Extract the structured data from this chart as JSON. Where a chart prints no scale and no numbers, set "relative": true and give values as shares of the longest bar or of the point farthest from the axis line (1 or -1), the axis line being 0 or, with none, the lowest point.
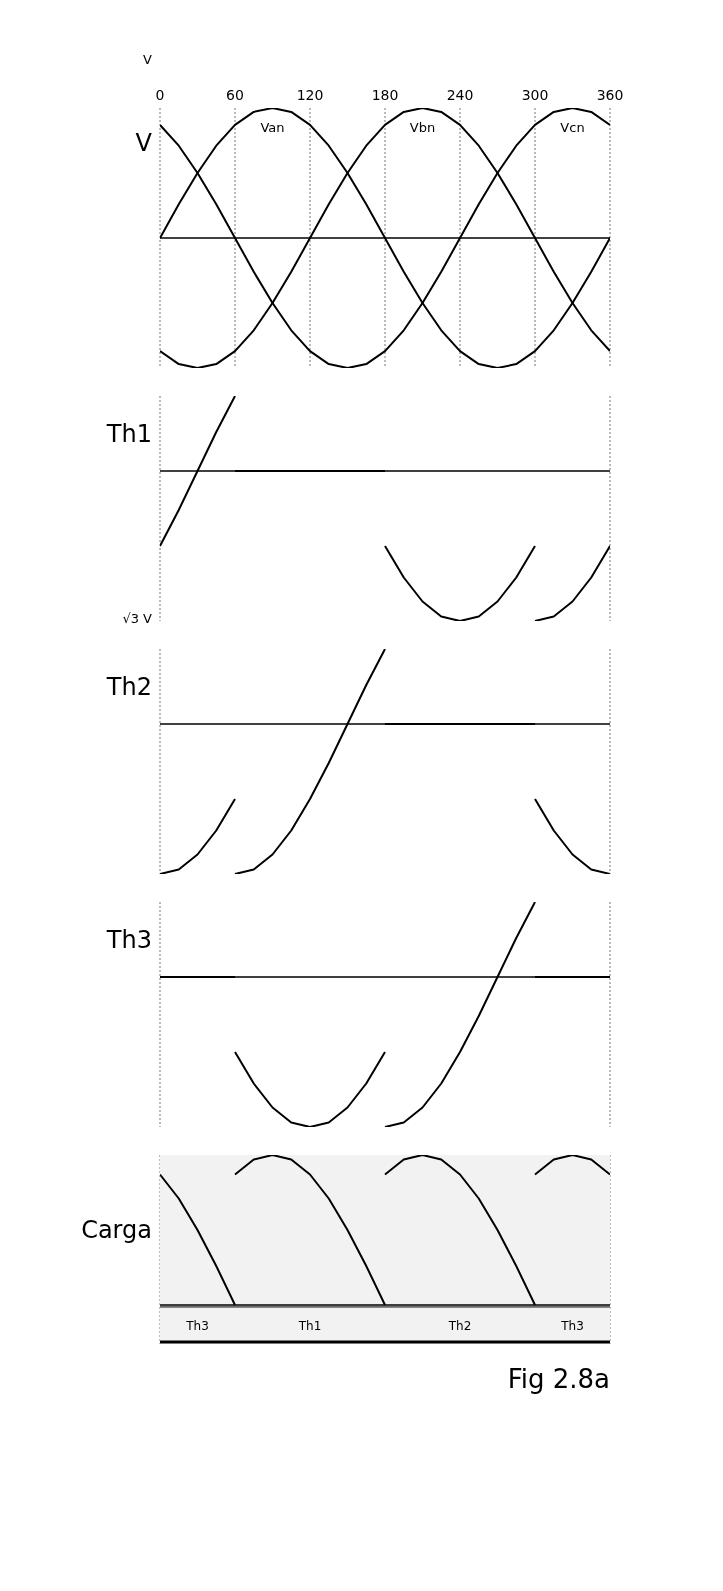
{
  "chart_data": [
    {
      "type": "line",
      "relative": true,
      "ylabel": "V",
      "xlim": [
        0,
        360
      ],
      "xticks": [
        0,
        60,
        120,
        180,
        240,
        300,
        360
      ],
      "grid": "x",
      "annotations": [
        "V"
      ],
      "series": [
        {
          "name": "Van",
          "color": "#000000",
          "x": [
            0,
            15,
            30,
            45,
            60,
            75,
            90,
            105,
            120,
            135,
            150,
            165,
            180,
            195,
            210,
            225,
            240,
            255,
            270,
            285,
            300,
            315,
            330,
            345,
            360
          ],
          "values": [
            0,
            0.26,
            0.5,
            0.71,
            0.87,
            0.97,
            1,
            0.97,
            0.87,
            0.71,
            0.5,
            0.26,
            0,
            -0.26,
            -0.5,
            -0.71,
            -0.87,
            -0.97,
            -1,
            -0.97,
            -0.87,
            -0.71,
            -0.5,
            -0.26,
            0
          ]
        },
        {
          "name": "Vbn",
          "color": "#000000",
          "x": [
            0,
            15,
            30,
            45,
            60,
            75,
            90,
            105,
            120,
            135,
            150,
            165,
            180,
            195,
            210,
            225,
            240,
            255,
            270,
            285,
            300,
            315,
            330,
            345,
            360
          ],
          "values": [
            -0.87,
            -0.97,
            -1,
            -0.97,
            -0.87,
            -0.71,
            -0.5,
            -0.26,
            0,
            0.26,
            0.5,
            0.71,
            0.87,
            0.97,
            1,
            0.97,
            0.87,
            0.71,
            0.5,
            0.26,
            0,
            -0.26,
            -0.5,
            -0.71,
            -0.87
          ]
        },
        {
          "name": "Vcn",
          "color": "#000000",
          "x": [
            0,
            15,
            30,
            45,
            60,
            75,
            90,
            105,
            120,
            135,
            150,
            165,
            180,
            195,
            210,
            225,
            240,
            255,
            270,
            285,
            300,
            315,
            330,
            345,
            360
          ],
          "values": [
            0.87,
            0.71,
            0.5,
            0.26,
            0,
            -0.26,
            -0.5,
            -0.71,
            -0.87,
            -0.97,
            -1,
            -0.97,
            -0.87,
            -0.71,
            -0.5,
            -0.26,
            0,
            0.26,
            0.5,
            0.71,
            0.87,
            0.97,
            1,
            0.97,
            0.87
          ]
        }
      ]
    },
    {
      "type": "line",
      "relative": true,
      "ylabel": "Th1",
      "xlim": [
        0,
        360
      ],
      "grid": "x",
      "tick_labels": false,
      "annotations": [
        "√3 V"
      ],
      "series": [
        {
          "color": "#000000",
          "x": [
            0,
            15,
            30,
            45,
            60
          ],
          "values": [
            -0.5,
            -0.26,
            0,
            0.26,
            0.5
          ]
        },
        {
          "color": "#000000",
          "x": [
            60,
            180
          ],
          "values": [
            0,
            0
          ]
        },
        {
          "color": "#000000",
          "x": [
            180,
            195,
            210,
            225,
            240,
            255,
            270,
            285,
            300
          ],
          "values": [
            -0.5,
            -0.71,
            -0.87,
            -0.97,
            -1,
            -0.97,
            -0.87,
            -0.71,
            -0.5
          ]
        },
        {
          "color": "#000000",
          "x": [
            300,
            315,
            330,
            345,
            360
          ],
          "values": [
            -1,
            -0.97,
            -0.87,
            -0.71,
            -0.5
          ]
        }
      ]
    },
    {
      "type": "line",
      "relative": true,
      "ylabel": "Th2",
      "xlim": [
        0,
        360
      ],
      "grid": "x",
      "tick_labels": false,
      "series": [
        {
          "color": "#000000",
          "x": [
            0,
            15,
            30,
            45,
            60
          ],
          "values": [
            -1,
            -0.97,
            -0.87,
            -0.71,
            -0.5
          ]
        },
        {
          "color": "#000000",
          "x": [
            60,
            75,
            90,
            105,
            120,
            135,
            150,
            165,
            180
          ],
          "values": [
            -1,
            -0.97,
            -0.87,
            -0.71,
            -0.5,
            -0.26,
            0,
            0.26,
            0.5
          ]
        },
        {
          "color": "#000000",
          "x": [
            180,
            300
          ],
          "values": [
            0,
            0
          ]
        },
        {
          "color": "#000000",
          "x": [
            300,
            315,
            330,
            345,
            360
          ],
          "values": [
            -0.5,
            -0.71,
            -0.87,
            -0.97,
            -1
          ]
        }
      ]
    },
    {
      "type": "line",
      "relative": true,
      "ylabel": "Th3",
      "xlim": [
        0,
        360
      ],
      "grid": "x",
      "tick_labels": false,
      "series": [
        {
          "color": "#000000",
          "x": [
            0,
            60
          ],
          "values": [
            0,
            0
          ]
        },
        {
          "color": "#000000",
          "x": [
            60,
            75,
            90,
            105,
            120,
            135,
            150,
            165,
            180
          ],
          "values": [
            -0.5,
            -0.71,
            -0.87,
            -0.97,
            -1,
            -0.97,
            -0.87,
            -0.71,
            -0.5
          ]
        },
        {
          "color": "#000000",
          "x": [
            180,
            195,
            210,
            225,
            240,
            255,
            270,
            285,
            300
          ],
          "values": [
            -1,
            -0.97,
            -0.87,
            -0.71,
            -0.5,
            -0.26,
            0,
            0.26,
            0.5
          ]
        },
        {
          "color": "#000000",
          "x": [
            300,
            360
          ],
          "values": [
            0,
            0
          ]
        }
      ]
    },
    {
      "type": "line",
      "relative": true,
      "ylabel": "Carga",
      "xlim": [
        0,
        360
      ],
      "grid": "x",
      "tick_labels": false,
      "annotations": [
        "Fig 2.8a"
      ],
      "bands": [
        {
          "axis": "x",
          "from": 0,
          "to": 60,
          "label": "Th3",
          "color": "#f2f2f2"
        },
        {
          "axis": "x",
          "from": 60,
          "to": 180,
          "label": "Th1",
          "color": "#f2f2f2"
        },
        {
          "axis": "x",
          "from": 180,
          "to": 300,
          "label": "Th2",
          "color": "#f2f2f2"
        },
        {
          "axis": "x",
          "from": 300,
          "to": 360,
          "label": "Th3",
          "color": "#f2f2f2"
        }
      ],
      "series": [
        {
          "color": "#000000",
          "x": [
            0,
            15,
            30,
            45,
            60
          ],
          "values": [
            0.87,
            0.71,
            0.5,
            0.26,
            0
          ]
        },
        {
          "color": "#000000",
          "x": [
            60,
            75,
            90,
            105,
            120,
            135,
            150,
            165,
            180
          ],
          "values": [
            0.87,
            0.97,
            1,
            0.97,
            0.87,
            0.71,
            0.5,
            0.26,
            0
          ]
        },
        {
          "color": "#000000",
          "x": [
            180,
            195,
            210,
            225,
            240,
            255,
            270,
            285,
            300
          ],
          "values": [
            0.87,
            0.97,
            1,
            0.97,
            0.87,
            0.71,
            0.5,
            0.26,
            0
          ]
        },
        {
          "color": "#000000",
          "x": [
            300,
            315,
            330,
            345,
            360
          ],
          "values": [
            0.87,
            0.97,
            1,
            0.97,
            0.87
          ]
        }
      ]
    }
  ]
}
